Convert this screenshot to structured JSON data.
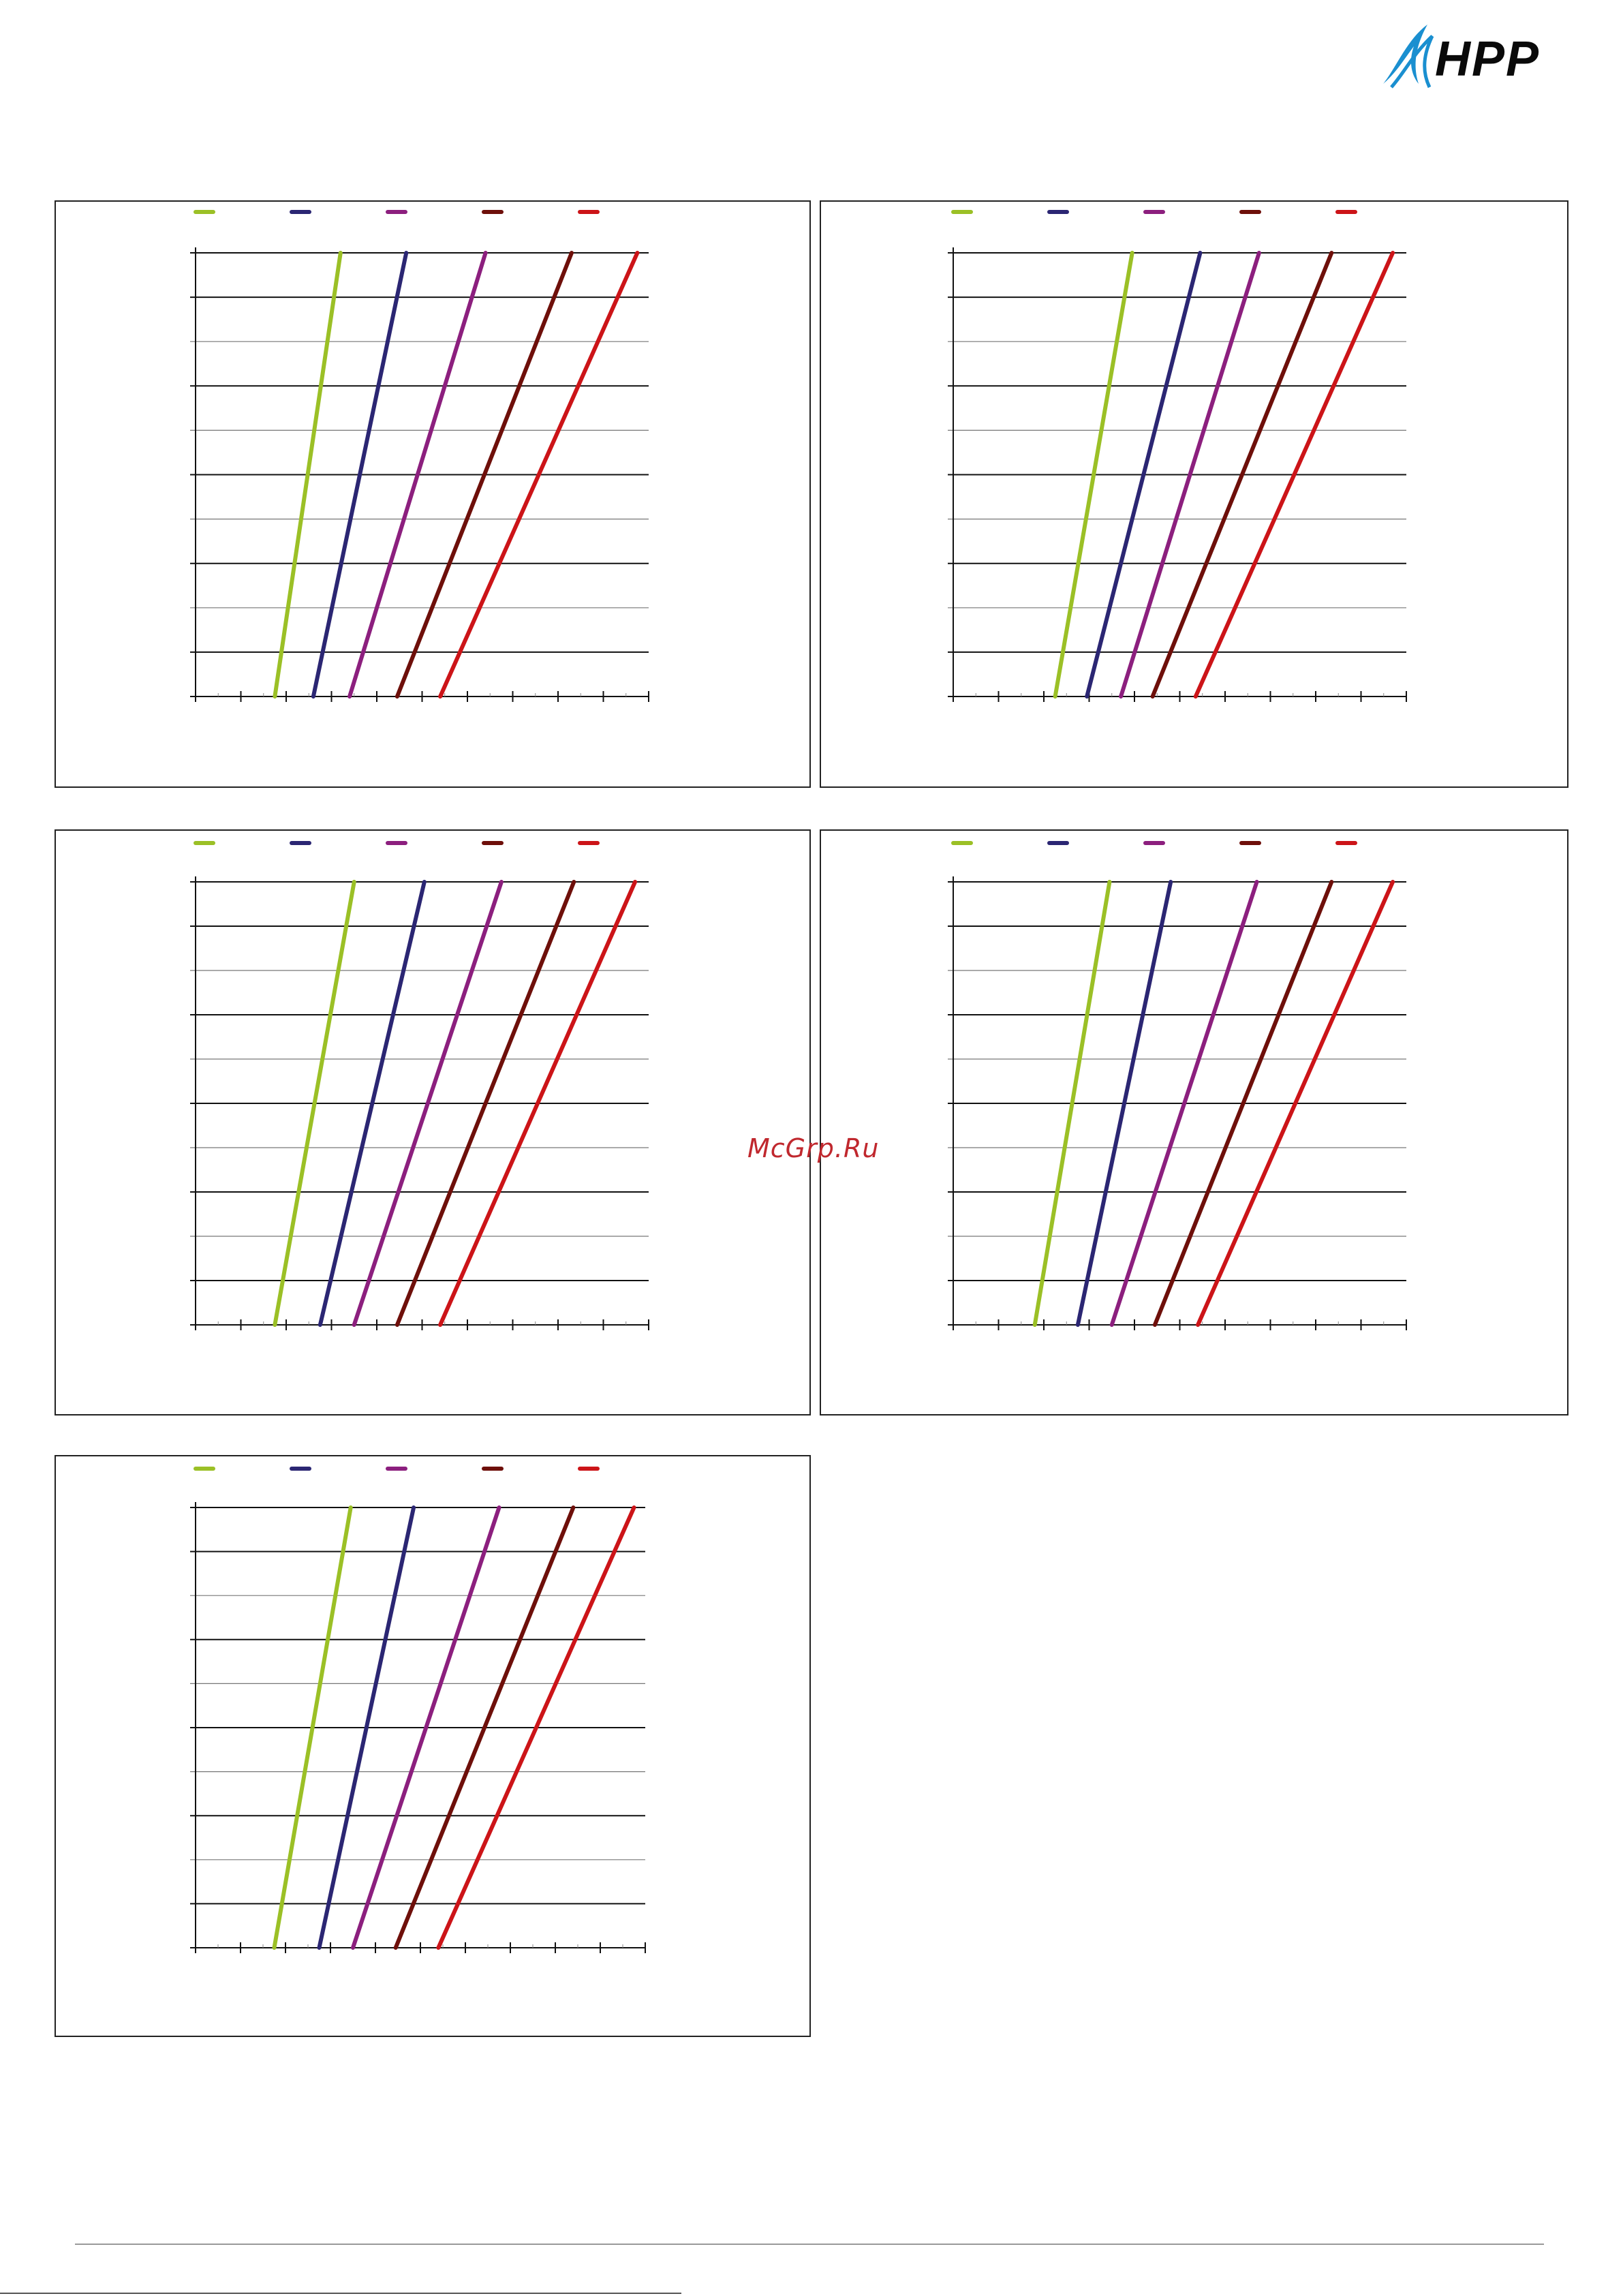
{
  "logo": {
    "text": "HPP",
    "mark_color": "#1a8fd0"
  },
  "watermark": "McGrp.Ru",
  "series_colors": [
    "#9bc026",
    "#2b2673",
    "#8c1f7e",
    "#6e0f0a",
    "#cc1418"
  ],
  "chart_data": [
    {
      "type": "line",
      "grid": true,
      "legend": "top",
      "xlim": [
        0,
        10
      ],
      "ylim": [
        0,
        10
      ],
      "series": [
        {
          "x": [
            1.75,
            3.2
          ],
          "y": [
            0,
            10
          ]
        },
        {
          "x": [
            2.6,
            4.65
          ],
          "y": [
            0,
            10
          ]
        },
        {
          "x": [
            3.4,
            6.4
          ],
          "y": [
            0,
            10
          ]
        },
        {
          "x": [
            4.45,
            8.3
          ],
          "y": [
            0,
            10
          ]
        },
        {
          "x": [
            5.4,
            9.75
          ],
          "y": [
            0,
            10
          ]
        }
      ]
    },
    {
      "type": "line",
      "grid": true,
      "legend": "top",
      "xlim": [
        0,
        10
      ],
      "ylim": [
        0,
        10
      ],
      "series": [
        {
          "x": [
            2.25,
            3.95
          ],
          "y": [
            0,
            10
          ]
        },
        {
          "x": [
            2.95,
            5.45
          ],
          "y": [
            0,
            10
          ]
        },
        {
          "x": [
            3.7,
            6.75
          ],
          "y": [
            0,
            10
          ]
        },
        {
          "x": [
            4.4,
            8.35
          ],
          "y": [
            0,
            10
          ]
        },
        {
          "x": [
            5.35,
            9.7
          ],
          "y": [
            0,
            10
          ]
        }
      ]
    },
    {
      "type": "line",
      "grid": true,
      "legend": "top",
      "xlim": [
        0,
        10
      ],
      "ylim": [
        0,
        10
      ],
      "series": [
        {
          "x": [
            1.75,
            3.5
          ],
          "y": [
            0,
            10
          ]
        },
        {
          "x": [
            2.75,
            5.05
          ],
          "y": [
            0,
            10
          ]
        },
        {
          "x": [
            3.5,
            6.75
          ],
          "y": [
            0,
            10
          ]
        },
        {
          "x": [
            4.45,
            8.35
          ],
          "y": [
            0,
            10
          ]
        },
        {
          "x": [
            5.4,
            9.7
          ],
          "y": [
            0,
            10
          ]
        }
      ]
    },
    {
      "type": "line",
      "grid": true,
      "legend": "top",
      "xlim": [
        0,
        10
      ],
      "ylim": [
        0,
        10
      ],
      "series": [
        {
          "x": [
            1.8,
            3.45
          ],
          "y": [
            0,
            10
          ]
        },
        {
          "x": [
            2.75,
            4.8
          ],
          "y": [
            0,
            10
          ]
        },
        {
          "x": [
            3.5,
            6.7
          ],
          "y": [
            0,
            10
          ]
        },
        {
          "x": [
            4.45,
            8.35
          ],
          "y": [
            0,
            10
          ]
        },
        {
          "x": [
            5.4,
            9.7
          ],
          "y": [
            0,
            10
          ]
        }
      ]
    },
    {
      "type": "line",
      "grid": true,
      "legend": "top",
      "xlim": [
        0,
        10
      ],
      "ylim": [
        0,
        10
      ],
      "series": [
        {
          "x": [
            1.75,
            3.45
          ],
          "y": [
            0,
            10
          ]
        },
        {
          "x": [
            2.75,
            4.85
          ],
          "y": [
            0,
            10
          ]
        },
        {
          "x": [
            3.5,
            6.75
          ],
          "y": [
            0,
            10
          ]
        },
        {
          "x": [
            4.45,
            8.4
          ],
          "y": [
            0,
            10
          ]
        },
        {
          "x": [
            5.4,
            9.75
          ],
          "y": [
            0,
            10
          ]
        }
      ]
    }
  ]
}
